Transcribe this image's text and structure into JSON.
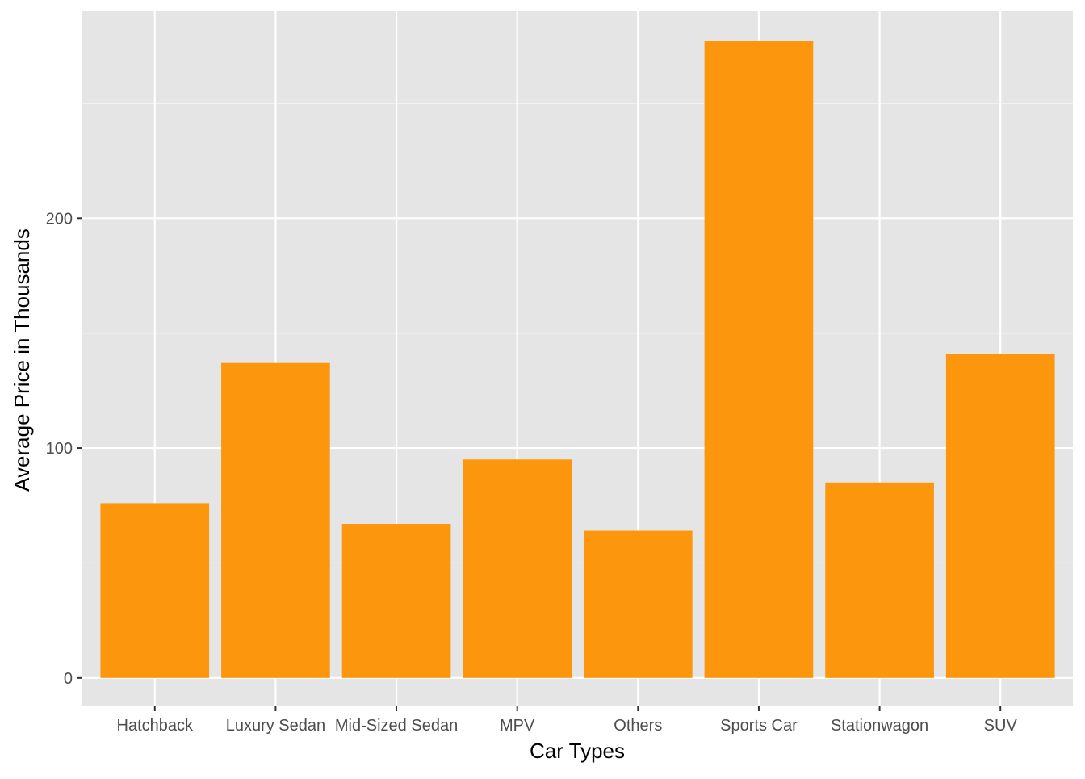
{
  "colors": {
    "panel_background": "#e5e5e5",
    "grid_line": "#ffffff",
    "bar_fill": "#fc960d",
    "tick_mark": "#333333"
  },
  "chart_data": {
    "type": "bar",
    "title": "",
    "xlabel": "Car Types",
    "ylabel": "Average Price in Thousands",
    "categories": [
      "Hatchback",
      "Luxury Sedan",
      "Mid-Sized Sedan",
      "MPV",
      "Others",
      "Sports Car",
      "Stationwagon",
      "SUV"
    ],
    "values": [
      76,
      137,
      67,
      95,
      64,
      277,
      85,
      141
    ],
    "ylim": [
      -12,
      290
    ],
    "y_ticks": [
      0,
      100,
      200
    ],
    "y_minor_ticks": [
      50,
      150,
      250
    ],
    "grid": true,
    "legend": "none"
  }
}
